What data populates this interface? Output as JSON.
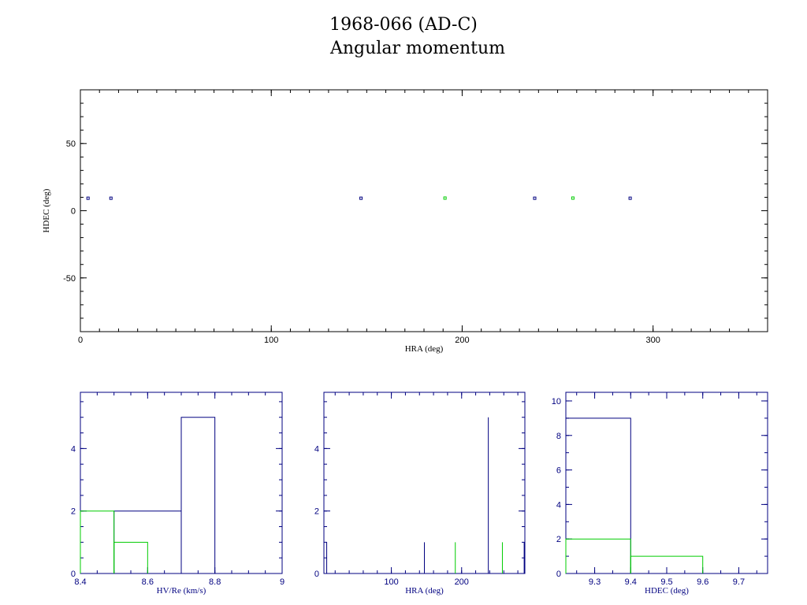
{
  "title": "1968-066 (AD-C)",
  "subtitle": "Angular momentum",
  "colors": {
    "blue": "#000080",
    "green": "#00cc00",
    "black": "#000000"
  },
  "chart_data": [
    {
      "type": "scatter",
      "xlabel": "HRA (deg)",
      "ylabel": "HDEC (deg)",
      "xlim": [
        0,
        360
      ],
      "ylim": [
        -90,
        90
      ],
      "xticks": [
        0,
        100,
        200,
        300
      ],
      "yticks": [
        -50,
        0,
        50
      ],
      "series": [
        {
          "color": "blue",
          "points": [
            [
              4,
              9.3
            ],
            [
              16,
              9.3
            ],
            [
              147,
              9.3
            ],
            [
              238,
              9.3
            ],
            [
              288,
              9.3
            ]
          ]
        },
        {
          "color": "green",
          "points": [
            [
              191,
              9.4
            ],
            [
              258,
              9.4
            ]
          ]
        }
      ]
    },
    {
      "type": "histogram",
      "xlabel": "HV/Re (km/s)",
      "xlim": [
        8.4,
        9.0
      ],
      "ylim": [
        0,
        5.8
      ],
      "xticks": [
        8.4,
        8.6,
        8.8,
        9
      ],
      "xtick_labels": [
        "8.4",
        "8.6",
        "8.8",
        "9"
      ],
      "yticks": [
        0,
        2,
        4
      ],
      "series": [
        {
          "color": "blue",
          "bins": [
            [
              8.5,
              8.7,
              2
            ],
            [
              8.7,
              8.8,
              5
            ]
          ]
        },
        {
          "color": "green",
          "bins": [
            [
              8.4,
              8.5,
              2
            ],
            [
              8.5,
              8.6,
              1
            ]
          ]
        }
      ]
    },
    {
      "type": "histogram",
      "xlabel": "HRA (deg)",
      "xlim": [
        4,
        290
      ],
      "ylim": [
        0,
        5.8
      ],
      "xticks": [
        100,
        200
      ],
      "xtick_labels": [
        "100",
        "200"
      ],
      "yticks": [
        0,
        2,
        4
      ],
      "series": [
        {
          "color": "blue",
          "bins": [
            [
              8,
              8,
              1
            ],
            [
              147,
              147,
              1
            ],
            [
              238,
              238,
              5
            ],
            [
              289,
              289,
              1
            ]
          ]
        },
        {
          "color": "green",
          "bins": [
            [
              191,
              191,
              1
            ],
            [
              258,
              258,
              1
            ]
          ]
        }
      ]
    },
    {
      "type": "histogram",
      "xlabel": "HDEC (deg)",
      "xlim": [
        9.22,
        9.78
      ],
      "ylim": [
        0,
        10.5
      ],
      "xticks": [
        9.3,
        9.4,
        9.5,
        9.6,
        9.7
      ],
      "xtick_labels": [
        "9.3",
        "9.4",
        "9.5",
        "9.6",
        "9.7"
      ],
      "yticks": [
        0,
        2,
        4,
        6,
        8,
        10
      ],
      "series": [
        {
          "color": "blue",
          "bins": [
            [
              9.22,
              9.4,
              9
            ]
          ]
        },
        {
          "color": "green",
          "bins": [
            [
              9.22,
              9.4,
              2
            ],
            [
              9.4,
              9.6,
              1
            ]
          ]
        }
      ]
    }
  ]
}
